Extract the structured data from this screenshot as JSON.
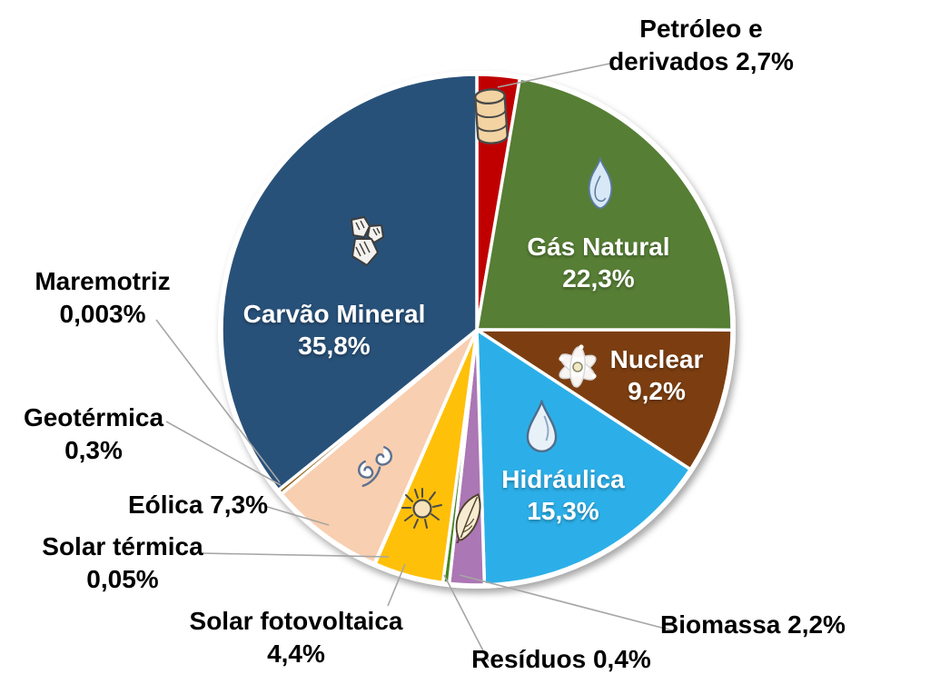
{
  "chart_data": {
    "type": "pie",
    "title": "",
    "unit": "%",
    "decimal_style": "comma",
    "start_angle_deg": 0,
    "direction": "clockwise",
    "legend_position": "none",
    "slices": [
      {
        "id": "petroleo",
        "label": "Petróleo e derivados",
        "value": 2.7,
        "display": "2,7%",
        "color": "#C00000",
        "icon": "oil-barrel-icon"
      },
      {
        "id": "gas-natural",
        "label": "Gás Natural",
        "value": 22.3,
        "display": "22,3%",
        "color": "#567E35",
        "icon": "gas-flame-icon"
      },
      {
        "id": "nuclear",
        "label": "Nuclear",
        "value": 9.2,
        "display": "9,2%",
        "color": "#7C3E11",
        "icon": "atom-icon"
      },
      {
        "id": "hidraulica",
        "label": "Hidráulica",
        "value": 15.3,
        "display": "15,3%",
        "color": "#2CAFE8",
        "icon": "water-drop-icon"
      },
      {
        "id": "biomassa",
        "label": "Biomassa",
        "value": 2.2,
        "display": "2,2%",
        "color": "#AB77B4",
        "icon": "leaf-icon"
      },
      {
        "id": "residuos",
        "label": "Resíduos",
        "value": 0.4,
        "display": "0,4%",
        "color": "#468522",
        "icon": null
      },
      {
        "id": "solar-fotovoltaica",
        "label": "Solar fotovoltaica",
        "value": 4.4,
        "display": "4,4%",
        "color": "#FFC00A",
        "icon": "sun-icon"
      },
      {
        "id": "solar-termica",
        "label": "Solar térmica",
        "value": 0.05,
        "display": "0,05%",
        "color": "#E59B2C",
        "icon": null
      },
      {
        "id": "eolica",
        "label": "Eólica",
        "value": 7.3,
        "display": "7,3%",
        "color": "#F8CFB0",
        "icon": "wind-icon"
      },
      {
        "id": "geotermica",
        "label": "Geotérmica",
        "value": 0.3,
        "display": "0,3%",
        "color": "#8F5C0D",
        "icon": null
      },
      {
        "id": "maremotriz",
        "label": "Maremotriz",
        "value": 0.003,
        "display": "0,003%",
        "color": "#BFBFBF",
        "icon": null
      },
      {
        "id": "carvao-mineral",
        "label": "Carvão Mineral",
        "value": 35.8,
        "display": "35,8%",
        "color": "#285179",
        "icon": "coal-icon"
      }
    ]
  },
  "inner_labels": {
    "carvao": {
      "line1": "Carvão Mineral",
      "line2": "35,8%"
    },
    "gas": {
      "line1": "Gás Natural",
      "line2": "22,3%"
    },
    "nuclear": {
      "line1": "Nuclear",
      "line2": "9,2%"
    },
    "hidraulica": {
      "line1": "Hidráulica",
      "line2": "15,3%"
    }
  },
  "outer_labels": {
    "petroleo": {
      "line1": "Petróleo e",
      "line2": "derivados 2,7%"
    },
    "maremotriz": {
      "line1": "Maremotriz",
      "line2": "0,003%"
    },
    "geotermica": {
      "line1": "Geotérmica",
      "line2": "0,3%"
    },
    "eolica": {
      "line1": "Eólica 7,3%"
    },
    "solar_termica": {
      "line1": "Solar térmica",
      "line2": "0,05%"
    },
    "solar_fotovoltaica": {
      "line1": "Solar fotovoltaica",
      "line2": "4,4%"
    },
    "residuos": {
      "line1": "Resíduos 0,4%"
    },
    "biomassa": {
      "line1": "Biomassa 2,2%"
    }
  },
  "colors": {
    "leader_line": "#A6A6A6",
    "inner_text": "#FFFFFF",
    "outer_text": "#000000",
    "background": "#FFFFFF",
    "slice_border": "#FFFFFF"
  }
}
